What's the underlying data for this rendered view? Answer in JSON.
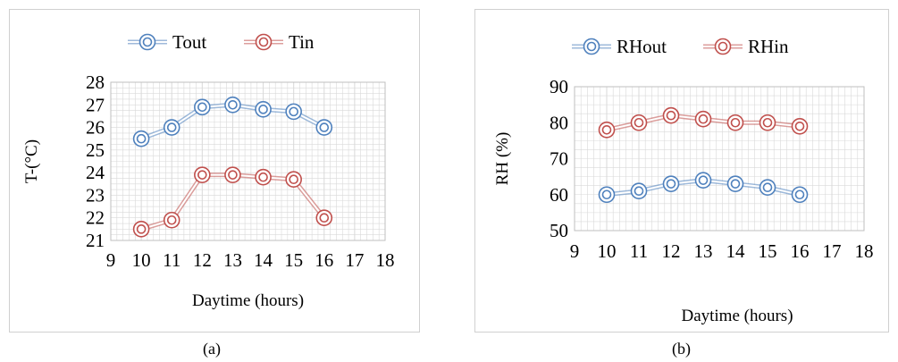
{
  "captions": {
    "a": "(a)",
    "b": "(b)"
  },
  "colors": {
    "out": "#4f81bd",
    "in": "#c0504d",
    "grid": "#d9d9d9"
  },
  "chart_data": [
    {
      "type": "line",
      "xlabel": "Daytime (hours)",
      "ylabel": "T-(°C)",
      "xlim": [
        9,
        18
      ],
      "ylim": [
        21,
        28
      ],
      "x_ticks": [
        "9",
        "10",
        "11",
        "12",
        "13",
        "14",
        "15",
        "16",
        "17",
        "18"
      ],
      "y_ticks": [
        "21",
        "22",
        "23",
        "24",
        "25",
        "26",
        "27",
        "28"
      ],
      "legend": "top-center",
      "grid": true,
      "series": [
        {
          "name": "Tout",
          "color": "#4f81bd",
          "x": [
            10,
            11,
            12,
            13,
            14,
            15,
            16
          ],
          "y": [
            25.5,
            26.0,
            26.9,
            27.0,
            26.8,
            26.7,
            26.0
          ]
        },
        {
          "name": "Tin",
          "color": "#c0504d",
          "x": [
            10,
            11,
            12,
            13,
            14,
            15,
            16
          ],
          "y": [
            21.5,
            21.9,
            23.9,
            23.9,
            23.8,
            23.7,
            22.0
          ]
        }
      ]
    },
    {
      "type": "line",
      "xlabel": "Daytime (hours)",
      "ylabel": "RH (%)",
      "xlim": [
        9,
        18
      ],
      "ylim": [
        50,
        90
      ],
      "x_ticks": [
        "9",
        "10",
        "11",
        "12",
        "13",
        "14",
        "15",
        "16",
        "17",
        "18"
      ],
      "y_ticks": [
        "50",
        "60",
        "70",
        "80",
        "90"
      ],
      "legend": "top-center",
      "grid": true,
      "series": [
        {
          "name": "RHout",
          "color": "#4f81bd",
          "x": [
            10,
            11,
            12,
            13,
            14,
            15,
            16
          ],
          "y": [
            60,
            61,
            63,
            64,
            63,
            62,
            60
          ]
        },
        {
          "name": "RHin",
          "color": "#c0504d",
          "x": [
            10,
            11,
            12,
            13,
            14,
            15,
            16
          ],
          "y": [
            78,
            80,
            82,
            81,
            80,
            80,
            79
          ]
        }
      ]
    }
  ]
}
